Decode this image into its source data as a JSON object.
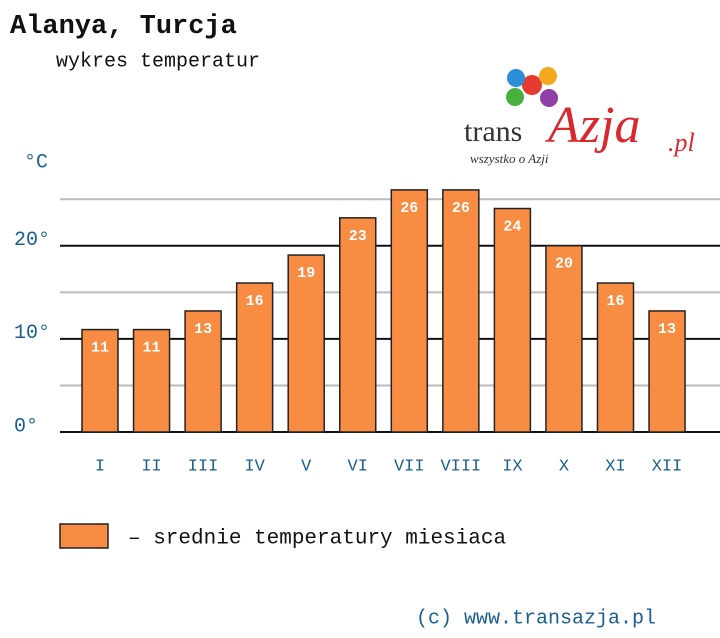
{
  "chart_data": {
    "type": "bar",
    "title": "Alanya, Turcja",
    "subtitle": "wykres temperatur",
    "unit_label": "°C",
    "categories": [
      "I",
      "II",
      "III",
      "IV",
      "V",
      "VI",
      "VII",
      "VIII",
      "IX",
      "X",
      "XI",
      "XII"
    ],
    "series": [
      {
        "name": "– srednie temperatury miesiaca",
        "color": "#f78c42",
        "values": [
          11,
          11,
          13,
          16,
          19,
          23,
          26,
          26,
          24,
          20,
          16,
          13
        ]
      }
    ],
    "ylim": [
      0,
      26
    ],
    "yticks": [
      {
        "value": 0,
        "label": "0°"
      },
      {
        "value": 10,
        "label": "10°"
      },
      {
        "value": 20,
        "label": "20°"
      }
    ],
    "minor_yticks": [
      5,
      15,
      25
    ],
    "grid": true,
    "footer": "(c) www.transazja.pl",
    "logo": {
      "parts": [
        "trans",
        "Azja",
        ".pl"
      ],
      "tagline": "wszystko o Azji"
    }
  }
}
